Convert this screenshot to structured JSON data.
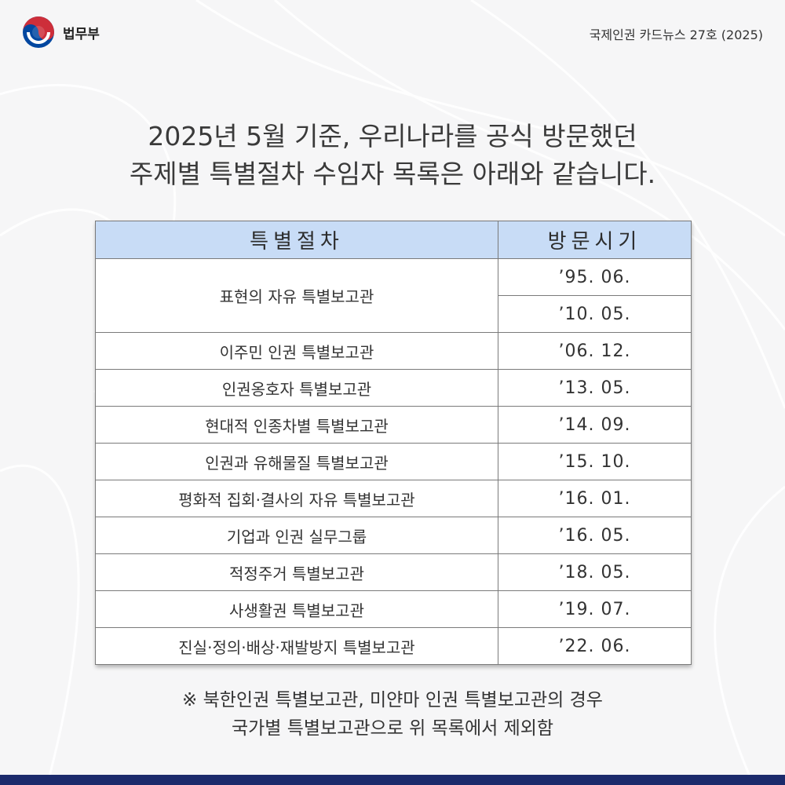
{
  "header": {
    "ministry": "법무부",
    "issue": "국제인권 카드뉴스 27호 (2025)"
  },
  "headline": {
    "line1": "2025년 5월 기준, 우리나라를 공식 방문했던",
    "line2": "주제별 특별절차 수임자 목록은 아래와 같습니다."
  },
  "table": {
    "headers": [
      "특별절차",
      "방문시기"
    ],
    "rows": [
      {
        "procedure": "표현의 자유 특별보고관",
        "dates": [
          "’95. 06.",
          "’10. 05."
        ]
      },
      {
        "procedure": "이주민 인권 특별보고관",
        "dates": [
          "’06. 12."
        ]
      },
      {
        "procedure": "인권옹호자 특별보고관",
        "dates": [
          "’13. 05."
        ]
      },
      {
        "procedure": "현대적 인종차별 특별보고관",
        "dates": [
          "’14. 09."
        ]
      },
      {
        "procedure": "인권과 유해물질 특별보고관",
        "dates": [
          "’15. 10."
        ]
      },
      {
        "procedure": "평화적 집회·결사의 자유 특별보고관",
        "dates": [
          "’16. 01."
        ]
      },
      {
        "procedure": "기업과 인권 실무그룹",
        "dates": [
          "’16. 05."
        ]
      },
      {
        "procedure": "적정주거 특별보고관",
        "dates": [
          "’18. 05."
        ]
      },
      {
        "procedure": "사생활권 특별보고관",
        "dates": [
          "’19. 07."
        ]
      },
      {
        "procedure": "진실·정의·배상·재발방지 특별보고관",
        "dates": [
          "’22. 06."
        ]
      }
    ]
  },
  "note": {
    "line1": "※ 북한인권 특별보고관, 미얀마 인권 특별보고관의 경우",
    "line2": "국가별 특별보고관으로 위 목록에서 제외함"
  },
  "colors": {
    "header_bg": "#c8dcf6",
    "bottom_bar": "#1b2a6b",
    "emblem_red": "#cd2e3a",
    "emblem_blue": "#0047a0"
  }
}
